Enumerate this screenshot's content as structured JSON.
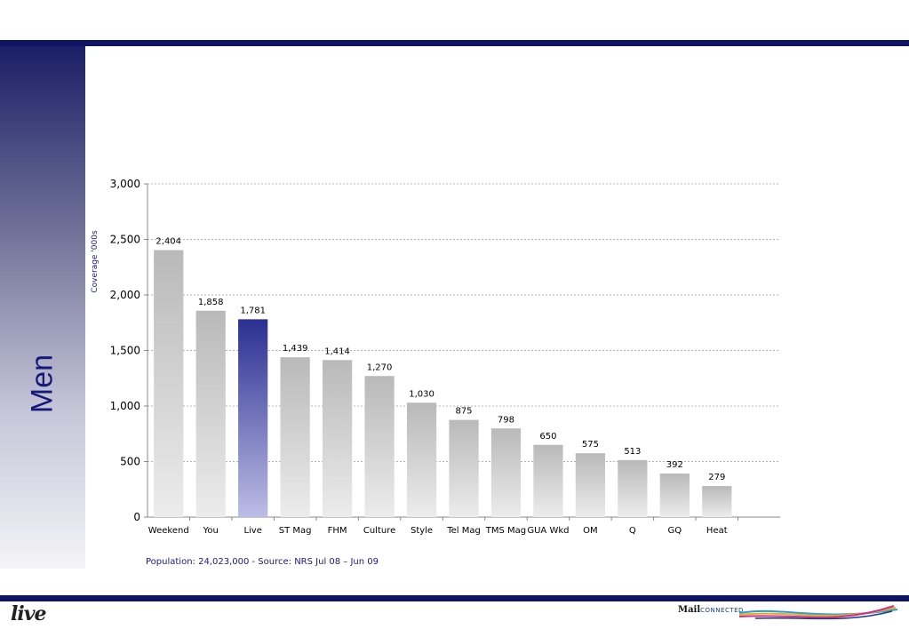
{
  "side_title": "Men",
  "source": "Population: 24,023,000 - Source: NRS Jul 08 – Jun 09",
  "logos": {
    "left": "live",
    "mail": "Mail",
    "connected": "CONNECTED"
  },
  "colors": {
    "accent": "#0f1464",
    "highlight_bar": "#2e3192",
    "bar": "#bdbdbd"
  },
  "chart_data": {
    "type": "bar",
    "title": "",
    "xlabel": "",
    "ylabel": "Coverage '000s",
    "ylim": [
      0,
      3000
    ],
    "yticks": [
      "0",
      "500",
      "1,000",
      "1,500",
      "2,000",
      "2,500",
      "3,000"
    ],
    "grid": true,
    "categories": [
      "Weekend",
      "You",
      "Live",
      "ST Mag",
      "FHM",
      "Culture",
      "Style",
      "Tel Mag",
      "TMS Mag",
      "GUA Wkd",
      "OM",
      "Q",
      "GQ",
      "Heat"
    ],
    "values": [
      2404,
      1858,
      1781,
      1439,
      1414,
      1270,
      1030,
      875,
      798,
      650,
      575,
      513,
      392,
      279
    ],
    "value_labels": [
      "2,404",
      "1,858",
      "1,781",
      "1,439",
      "1,414",
      "1,270",
      "1,030",
      "875",
      "798",
      "650",
      "575",
      "513",
      "392",
      "279"
    ],
    "highlight": "Live"
  }
}
